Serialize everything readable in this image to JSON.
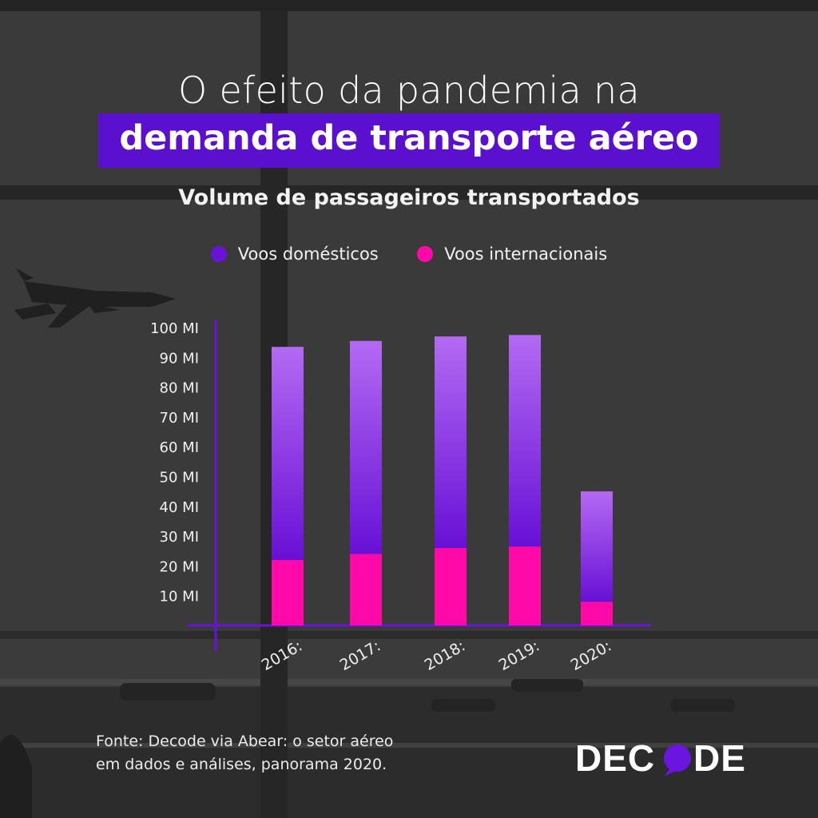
{
  "header": {
    "title_line1": "O efeito da pandemia na",
    "title_line2": "demanda de transporte aéreo"
  },
  "footer": {
    "source_line1": "Fonte: Decode via Abear: o setor aéreo",
    "source_line2": "em dados e análises, panorama 2020."
  },
  "brand": {
    "name": "DECODE",
    "accent": "#6a16e0"
  },
  "chart_data": {
    "type": "bar",
    "stacked": true,
    "title": "Volume de passageiros transportados",
    "categories": [
      "2016:",
      "2017:",
      "2018:",
      "2019:",
      "2020:"
    ],
    "series": [
      {
        "name": "Voos internacionais",
        "color": "#ff0aa8",
        "values": [
          22,
          24,
          26,
          26.5,
          8
        ]
      },
      {
        "name": "Voos domésticos",
        "color": "#7a1ee6",
        "values": [
          71.5,
          71.5,
          71,
          71,
          37
        ]
      }
    ],
    "yticks": [
      "10 MI",
      "20 MI",
      "30 MI",
      "40 MI",
      "50 MI",
      "60 MI",
      "70 MI",
      "80 MI",
      "90 MI",
      "100 MI"
    ],
    "ylim": [
      0,
      100
    ],
    "grid": false,
    "legend_position": "top"
  }
}
